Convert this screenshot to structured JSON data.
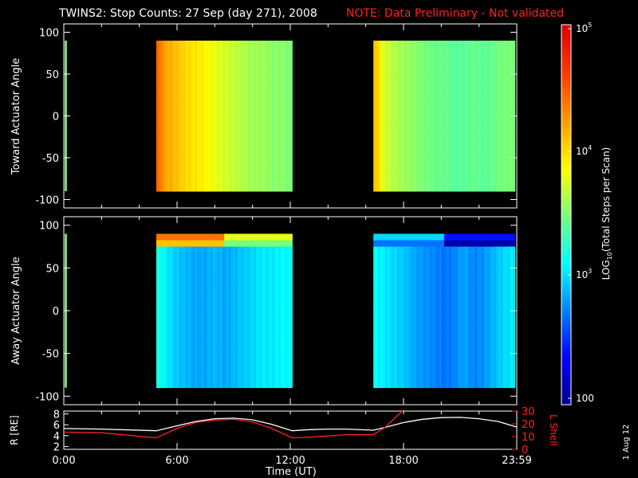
{
  "header": {
    "title": "TWINS2: Stop Counts: 27 Sep (day 271), 2008",
    "note": "NOTE: Data Preliminary - Not validated",
    "note_color": "#ff2020"
  },
  "footer": {
    "date_stamp": "1 Aug 12"
  },
  "chart_data": [
    {
      "type": "heatmap",
      "ylabel": "Toward Actuator Angle",
      "ylim": [
        -110,
        110
      ],
      "y_ticks": [
        "100",
        "50",
        "0",
        "-50",
        "-100"
      ],
      "x_ticks": [
        "0:00",
        "6:00",
        "12:00",
        "18:00",
        "23:59"
      ],
      "xlim_hours": [
        0,
        24
      ],
      "data_angle_range": [
        -90,
        90
      ],
      "scale": "log",
      "segments": [
        {
          "start_hour": 4.9,
          "end_hour": 12.1,
          "level_by_time": [
            4.25,
            4.2,
            4.1,
            4.0,
            3.95,
            3.9,
            3.8,
            3.75,
            3.7,
            3.65,
            3.6,
            3.6,
            3.55,
            3.55,
            3.5
          ],
          "edge_hot": 4.45
        },
        {
          "start_hour": 16.4,
          "end_hour": 23.9,
          "level_by_time": [
            3.85,
            3.75,
            3.65,
            3.6,
            3.55,
            3.5,
            3.45,
            3.45,
            3.4,
            3.4,
            3.45,
            3.4,
            3.45,
            3.5,
            3.5
          ],
          "edge_hot": 4.1
        }
      ]
    },
    {
      "type": "heatmap",
      "ylabel": "Away Actuator Angle",
      "ylim": [
        -110,
        110
      ],
      "y_ticks": [
        "100",
        "50",
        "0",
        "-50",
        "-100"
      ],
      "x_ticks": [
        "0:00",
        "6:00",
        "12:00",
        "18:00",
        "23:59"
      ],
      "xlim_hours": [
        0,
        24
      ],
      "data_angle_range": [
        -90,
        90
      ],
      "scale": "log",
      "segments": [
        {
          "start_hour": 4.9,
          "end_hour": 12.1,
          "level_by_time": [
            3.2,
            3.05,
            2.95,
            2.9,
            2.85,
            2.85,
            2.9,
            2.85,
            2.9,
            2.95,
            3.0,
            3.05,
            3.05,
            3.1,
            3.1
          ],
          "top_band_level": 4.4
        },
        {
          "start_hour": 16.4,
          "end_hour": 23.9,
          "level_by_time": [
            3.15,
            3.05,
            3.0,
            2.95,
            2.85,
            2.8,
            2.75,
            2.7,
            2.75,
            2.85,
            2.75,
            2.8,
            2.9,
            3.0,
            3.05
          ],
          "top_band_level": 3.0
        }
      ]
    },
    {
      "type": "line",
      "xlabel": "Time (UT)",
      "ylabel_left": "R [RE]",
      "ylabel_right": "L Shell",
      "y_ticks_left": [
        "8",
        "6",
        "4",
        "2"
      ],
      "y_ticks_right": [
        "30",
        "20",
        "10",
        "0"
      ],
      "ylim_left": [
        1.5,
        8.5
      ],
      "ylim_right": [
        0,
        30
      ],
      "x_ticks": [
        "0:00",
        "6:00",
        "12:00",
        "18:00",
        "23:59"
      ],
      "series": [
        {
          "axis": "left",
          "color": "#ffffff",
          "x": [
            0,
            2,
            4.9,
            6,
            7,
            8,
            9,
            10,
            11,
            12.1,
            13,
            14,
            15,
            16.4,
            17,
            18,
            19,
            20,
            21,
            22,
            23,
            23.98
          ],
          "y": [
            5.3,
            5.2,
            4.9,
            5.8,
            6.6,
            7.1,
            7.2,
            6.9,
            6.1,
            4.9,
            5.1,
            5.2,
            5.2,
            5.0,
            5.5,
            6.4,
            7.0,
            7.3,
            7.35,
            7.1,
            6.6,
            5.6
          ]
        },
        {
          "axis": "right",
          "color": "#ff2020",
          "x": [
            0,
            2,
            4.9,
            6,
            7,
            8,
            9,
            10,
            11,
            12.1,
            13,
            14,
            15,
            16.4,
            17,
            17.5,
            18
          ],
          "y": [
            13.5,
            13,
            9,
            16.5,
            21,
            23,
            23.5,
            21.5,
            16.5,
            9,
            9.5,
            10.5,
            11.5,
            11.5,
            17,
            24,
            31
          ]
        }
      ]
    }
  ],
  "colorbar": {
    "label": "LOG10(Total Steps per Scan)",
    "label_main": "LOG",
    "label_sub": "10",
    "label_rest": "(Total Steps per Scan)",
    "ticks": [
      "10",
      "10",
      "10",
      "100"
    ],
    "tick_powers": [
      "5",
      "4",
      "3",
      ""
    ],
    "range_log": [
      2,
      5
    ]
  }
}
